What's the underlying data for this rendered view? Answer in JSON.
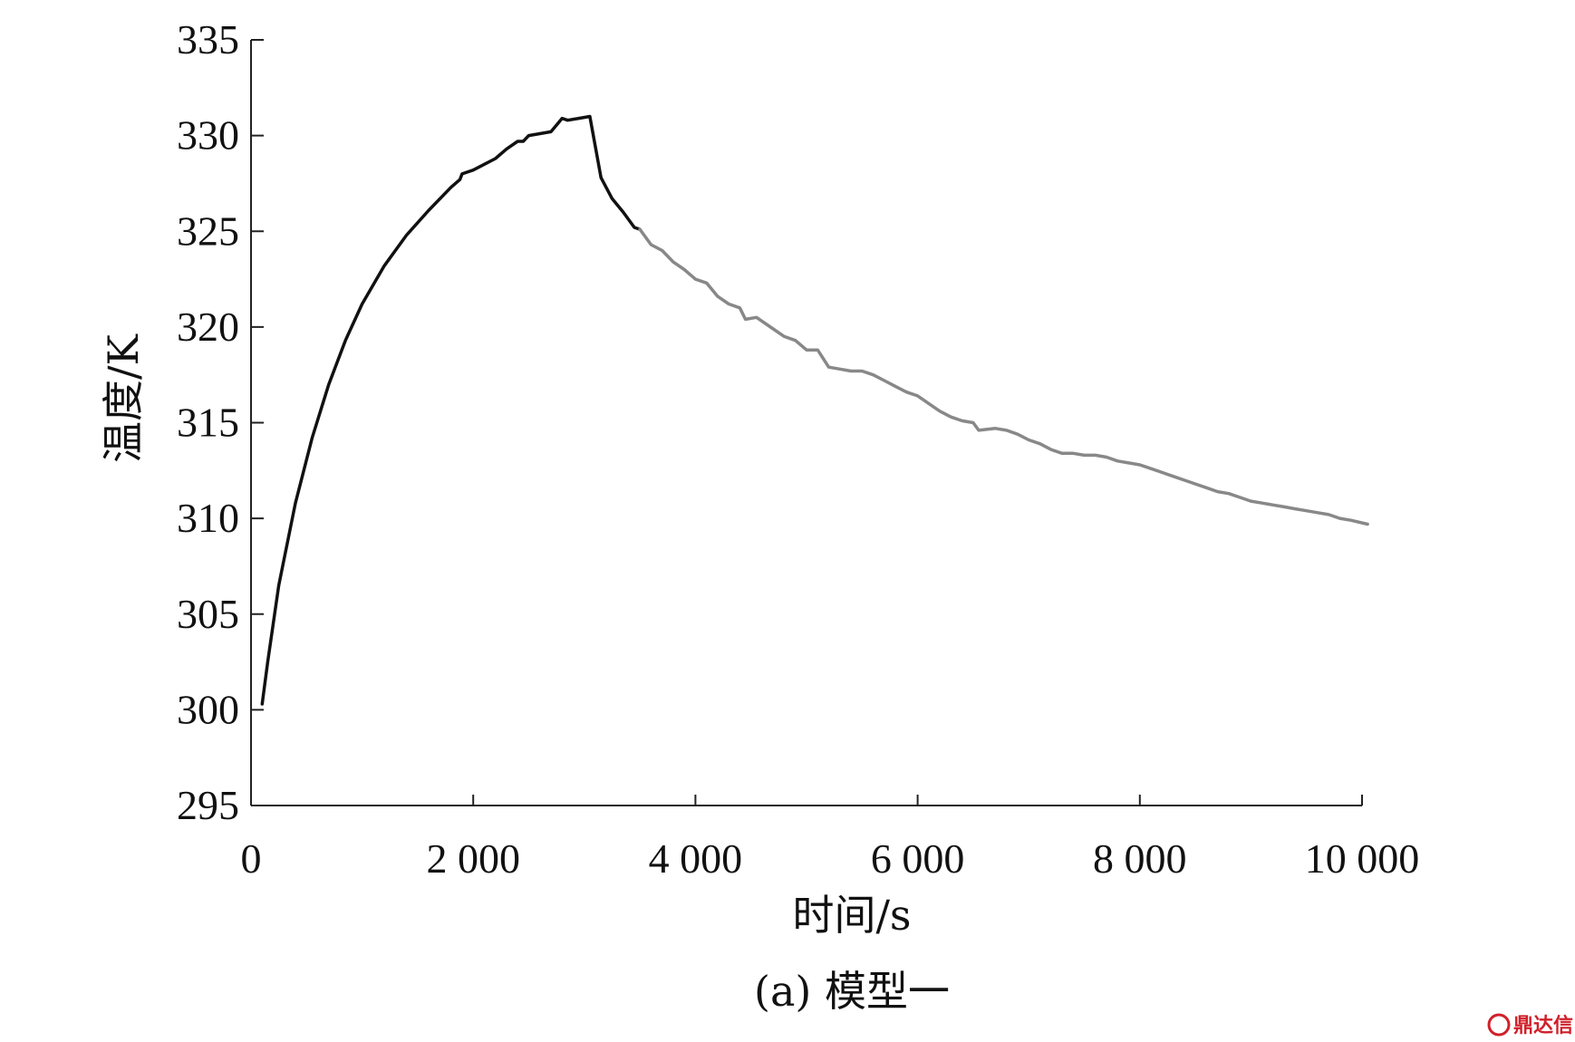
{
  "chart_data": {
    "type": "line",
    "xlabel": "时间/s",
    "ylabel": "温度/K",
    "caption": "(a) 模型一",
    "xlim": [
      0,
      10000
    ],
    "ylim": [
      295,
      335
    ],
    "xticks": [
      0,
      2000,
      4000,
      6000,
      8000,
      10000
    ],
    "xtick_labels": [
      "0",
      "2 000",
      "4 000",
      "6 000",
      "8 000",
      "10 000"
    ],
    "yticks": [
      295,
      300,
      305,
      310,
      315,
      320,
      325,
      330,
      335
    ],
    "ytick_labels": [
      "295",
      "300",
      "305",
      "310",
      "315",
      "320",
      "325",
      "330",
      "335"
    ],
    "grid": false,
    "series": [
      {
        "color": "#111111",
        "points": [
          [
            100,
            300.3
          ],
          [
            150,
            302.5
          ],
          [
            250,
            306.5
          ],
          [
            400,
            310.8
          ],
          [
            550,
            314.2
          ],
          [
            700,
            317.0
          ],
          [
            850,
            319.3
          ],
          [
            1000,
            321.2
          ],
          [
            1200,
            323.2
          ],
          [
            1400,
            324.8
          ],
          [
            1600,
            326.1
          ],
          [
            1800,
            327.3
          ],
          [
            1880,
            327.7
          ],
          [
            1900,
            328.0
          ],
          [
            2000,
            328.2
          ],
          [
            2100,
            328.5
          ],
          [
            2200,
            328.8
          ],
          [
            2300,
            329.3
          ],
          [
            2400,
            329.7
          ],
          [
            2450,
            329.7
          ],
          [
            2500,
            330.0
          ],
          [
            2600,
            330.1
          ],
          [
            2700,
            330.2
          ],
          [
            2800,
            330.9
          ],
          [
            2850,
            330.8
          ],
          [
            2950,
            330.9
          ],
          [
            3050,
            331.0
          ],
          [
            3150,
            327.8
          ],
          [
            3250,
            326.7
          ],
          [
            3350,
            326.0
          ],
          [
            3450,
            325.2
          ],
          [
            3500,
            325.1
          ]
        ]
      },
      {
        "color": "#888888",
        "points": [
          [
            3500,
            325.1
          ],
          [
            3600,
            324.3
          ],
          [
            3700,
            324.0
          ],
          [
            3800,
            323.4
          ],
          [
            3900,
            323.0
          ],
          [
            4000,
            322.5
          ],
          [
            4100,
            322.3
          ],
          [
            4200,
            321.6
          ],
          [
            4300,
            321.2
          ],
          [
            4400,
            321.0
          ],
          [
            4450,
            320.4
          ],
          [
            4550,
            320.5
          ],
          [
            4700,
            319.9
          ],
          [
            4800,
            319.5
          ],
          [
            4900,
            319.3
          ],
          [
            5000,
            318.8
          ],
          [
            5100,
            318.8
          ],
          [
            5200,
            317.9
          ],
          [
            5300,
            317.8
          ],
          [
            5400,
            317.7
          ],
          [
            5500,
            317.7
          ],
          [
            5600,
            317.5
          ],
          [
            5700,
            317.2
          ],
          [
            5800,
            316.9
          ],
          [
            5900,
            316.6
          ],
          [
            6000,
            316.4
          ],
          [
            6100,
            316.0
          ],
          [
            6200,
            315.6
          ],
          [
            6300,
            315.3
          ],
          [
            6400,
            315.1
          ],
          [
            6500,
            315.0
          ],
          [
            6550,
            314.6
          ],
          [
            6700,
            314.7
          ],
          [
            6800,
            314.6
          ],
          [
            6900,
            314.4
          ],
          [
            7000,
            314.1
          ],
          [
            7100,
            313.9
          ],
          [
            7200,
            313.6
          ],
          [
            7300,
            313.4
          ],
          [
            7400,
            313.4
          ],
          [
            7500,
            313.3
          ],
          [
            7600,
            313.3
          ],
          [
            7700,
            313.2
          ],
          [
            7800,
            313.0
          ],
          [
            7900,
            312.9
          ],
          [
            8000,
            312.8
          ],
          [
            8100,
            312.6
          ],
          [
            8200,
            312.4
          ],
          [
            8300,
            312.2
          ],
          [
            8400,
            312.0
          ],
          [
            8500,
            311.8
          ],
          [
            8600,
            311.6
          ],
          [
            8700,
            311.4
          ],
          [
            8800,
            311.3
          ],
          [
            8900,
            311.1
          ],
          [
            9000,
            310.9
          ],
          [
            9100,
            310.8
          ],
          [
            9200,
            310.7
          ],
          [
            9300,
            310.6
          ],
          [
            9400,
            310.5
          ],
          [
            9500,
            310.4
          ],
          [
            9600,
            310.3
          ],
          [
            9700,
            310.2
          ],
          [
            9800,
            310.0
          ],
          [
            9900,
            309.9
          ],
          [
            10050,
            309.7
          ]
        ]
      }
    ]
  },
  "watermark": {
    "text": "鼎达信",
    "color": "#d0202a"
  }
}
